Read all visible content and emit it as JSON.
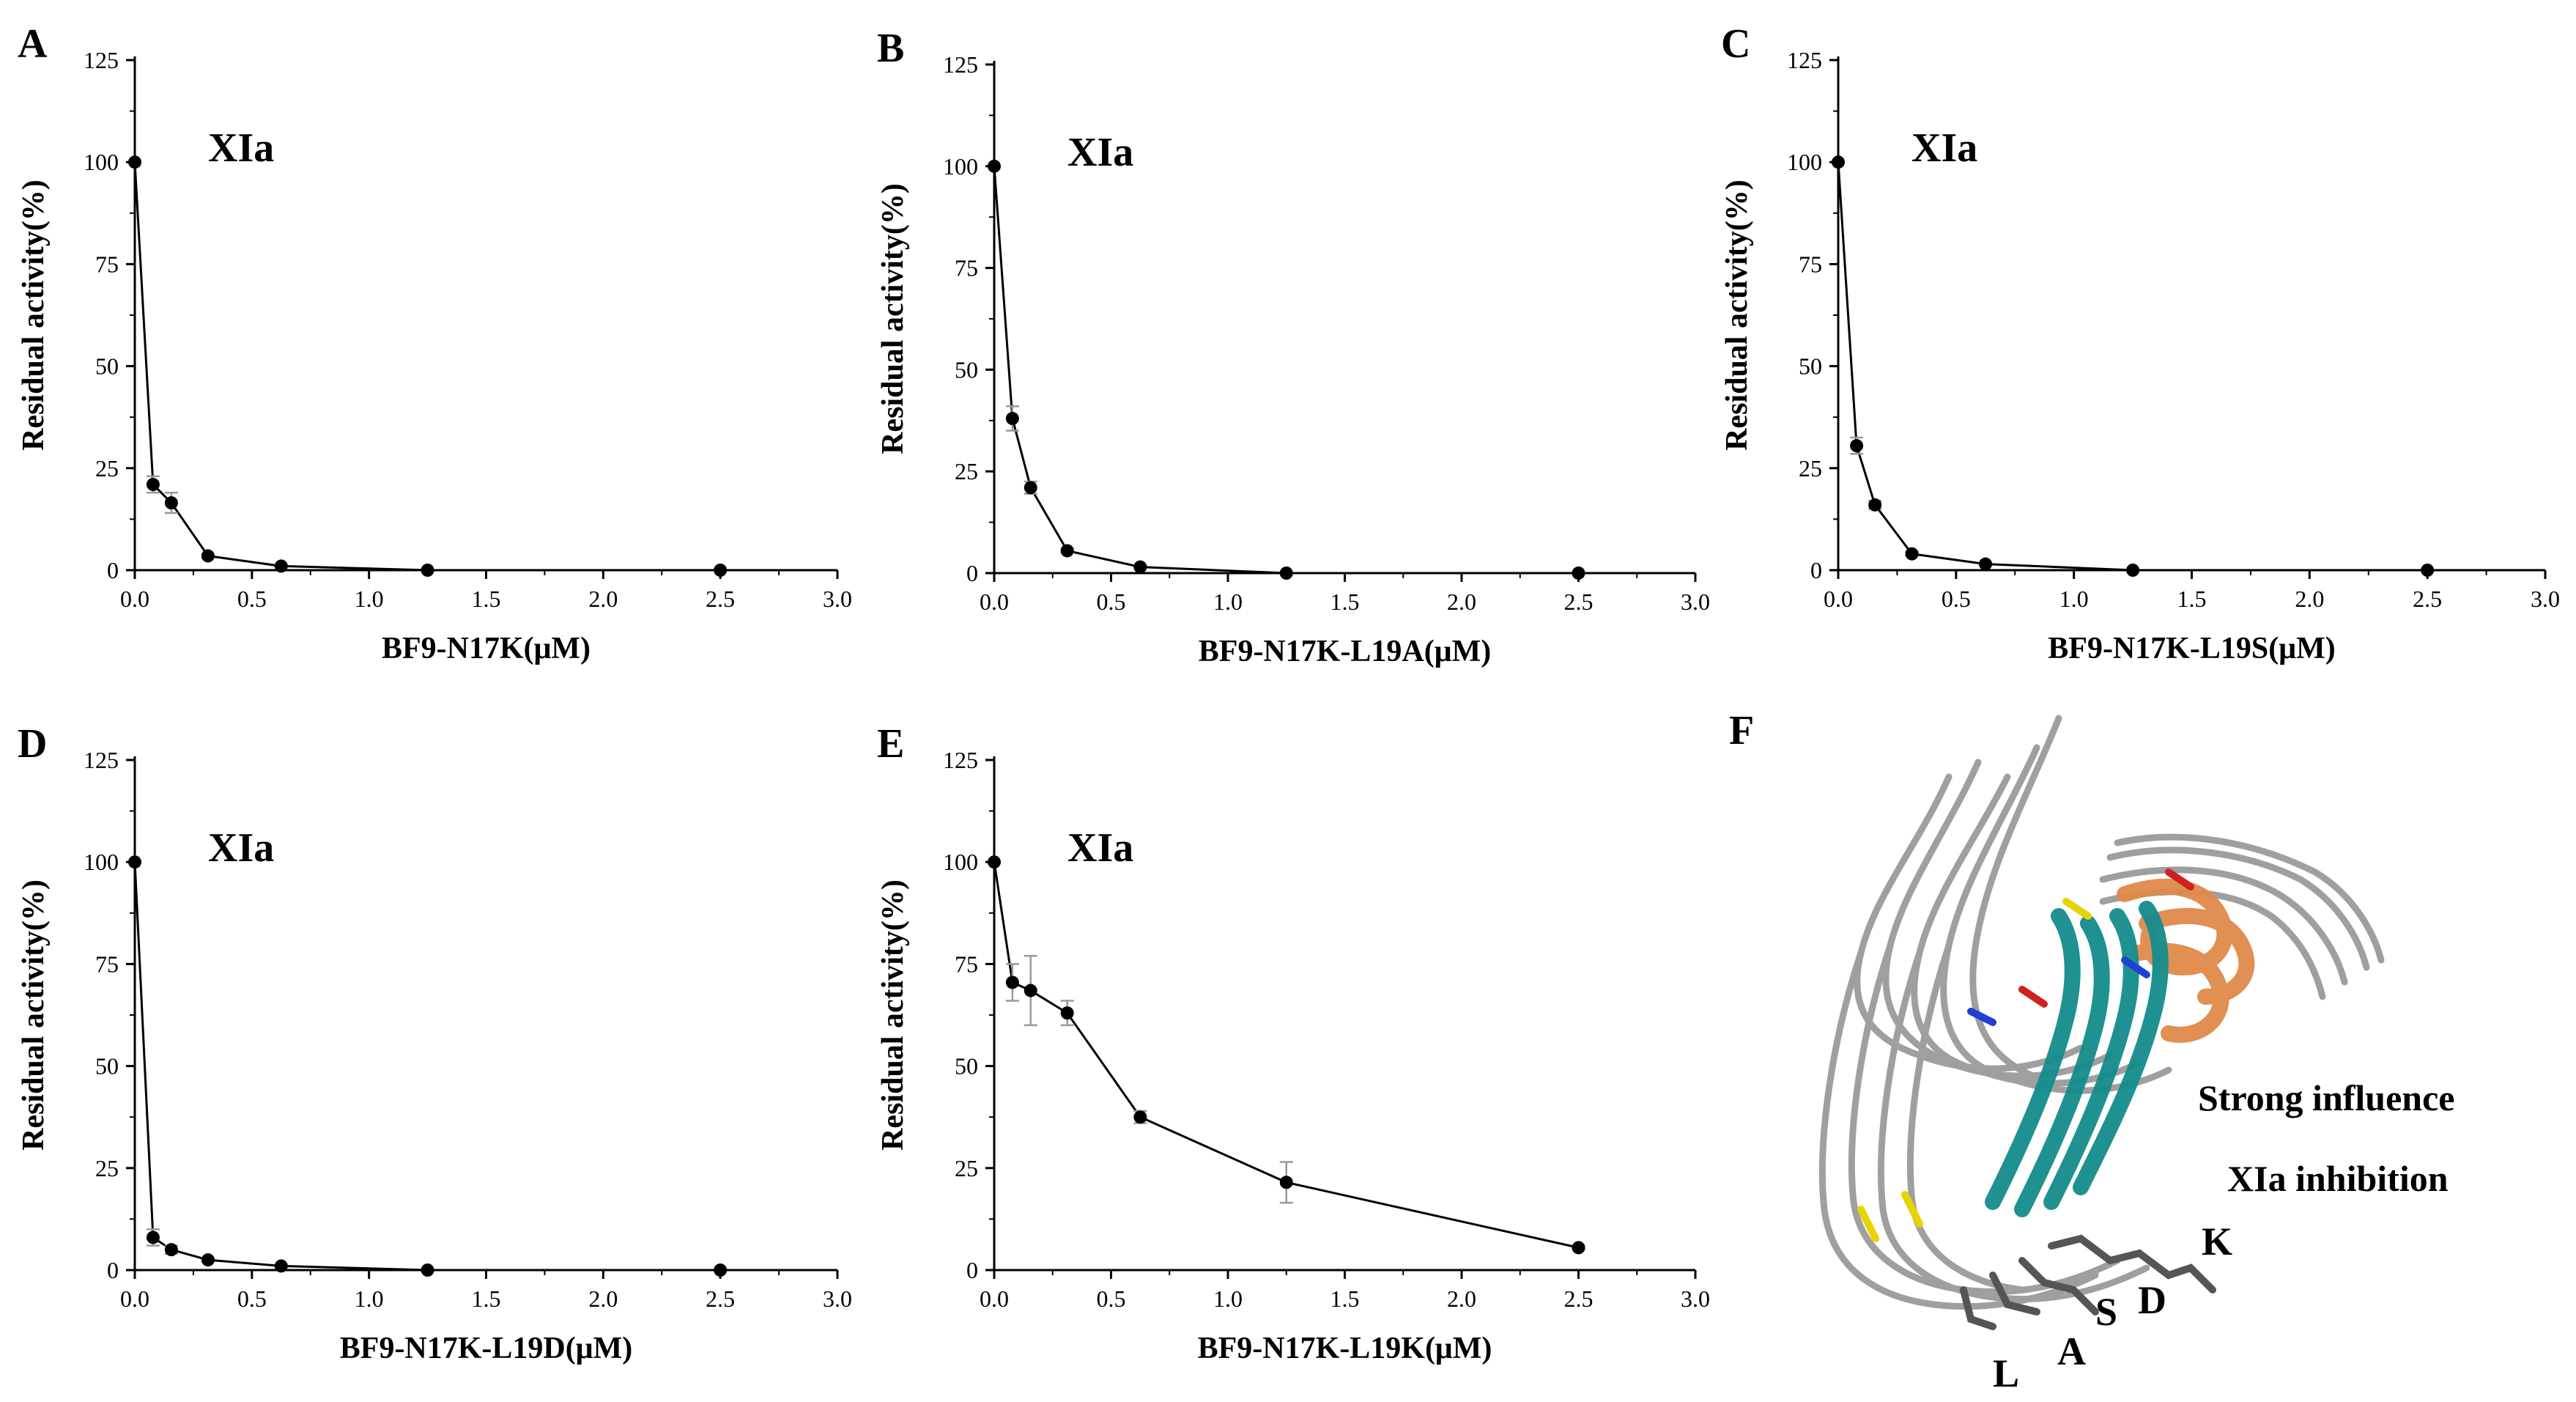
{
  "chart_data": [
    {
      "panel": "A",
      "type": "line",
      "title": "XIa",
      "xlabel": "BF9-N17K(μM)",
      "ylabel": "Residual activity(%)",
      "xlim": [
        0,
        3.0
      ],
      "ylim": [
        0,
        125
      ],
      "xticks": [
        "0.0",
        "0.5",
        "1.0",
        "1.5",
        "2.0",
        "2.5",
        "3.0"
      ],
      "yticks": [
        "0",
        "25",
        "50",
        "75",
        "100",
        "125"
      ],
      "x": [
        0,
        0.078,
        0.156,
        0.3125,
        0.625,
        1.25,
        2.5
      ],
      "y": [
        100,
        21,
        16.5,
        3.5,
        1,
        0,
        0
      ],
      "err": [
        0,
        2,
        2.5,
        0.5,
        0.3,
        0,
        0
      ]
    },
    {
      "panel": "B",
      "type": "line",
      "title": "XIa",
      "xlabel": "BF9-N17K-L19A(μM)",
      "ylabel": "Residual activity(%)",
      "xlim": [
        0,
        3.0
      ],
      "ylim": [
        0,
        125
      ],
      "xticks": [
        "0.0",
        "0.5",
        "1.0",
        "1.5",
        "2.0",
        "2.5",
        "3.0"
      ],
      "yticks": [
        "0",
        "25",
        "50",
        "75",
        "100",
        "125"
      ],
      "x": [
        0,
        0.078,
        0.156,
        0.3125,
        0.625,
        1.25,
        2.5
      ],
      "y": [
        100,
        38,
        21,
        5.5,
        1.5,
        0,
        0
      ],
      "err": [
        0,
        3,
        1.5,
        0.5,
        0.3,
        0,
        0
      ]
    },
    {
      "panel": "C",
      "type": "line",
      "title": "XIa",
      "xlabel": "BF9-N17K-L19S(μM)",
      "ylabel": "Residual activity(%)",
      "xlim": [
        0,
        3.0
      ],
      "ylim": [
        0,
        125
      ],
      "xticks": [
        "0.0",
        "0.5",
        "1.0",
        "1.5",
        "2.0",
        "2.5",
        "3.0"
      ],
      "yticks": [
        "0",
        "25",
        "50",
        "75",
        "100",
        "125"
      ],
      "x": [
        0,
        0.078,
        0.156,
        0.3125,
        0.625,
        1.25,
        2.5
      ],
      "y": [
        100,
        30.5,
        16,
        4,
        1.5,
        0,
        0
      ],
      "err": [
        0,
        2,
        1,
        0.5,
        0.3,
        0,
        0
      ]
    },
    {
      "panel": "D",
      "type": "line",
      "title": "XIa",
      "xlabel": "BF9-N17K-L19D(μM)",
      "ylabel": "Residual activity(%)",
      "xlim": [
        0,
        3.0
      ],
      "ylim": [
        0,
        125
      ],
      "xticks": [
        "0.0",
        "0.5",
        "1.0",
        "1.5",
        "2.0",
        "2.5",
        "3.0"
      ],
      "yticks": [
        "0",
        "25",
        "50",
        "75",
        "100",
        "125"
      ],
      "x": [
        0,
        0.078,
        0.156,
        0.3125,
        0.625,
        1.25,
        2.5
      ],
      "y": [
        100,
        8,
        5,
        2.5,
        1,
        0,
        0
      ],
      "err": [
        0,
        2,
        1,
        0.5,
        0.3,
        0,
        0
      ]
    },
    {
      "panel": "E",
      "type": "line",
      "title": "XIa",
      "xlabel": "BF9-N17K-L19K(μM)",
      "ylabel": "Residual activity(%)",
      "xlim": [
        0,
        3.0
      ],
      "ylim": [
        0,
        125
      ],
      "xticks": [
        "0.0",
        "0.5",
        "1.0",
        "1.5",
        "2.0",
        "2.5",
        "3.0"
      ],
      "yticks": [
        "0",
        "25",
        "50",
        "75",
        "100",
        "125"
      ],
      "x": [
        0,
        0.078,
        0.156,
        0.3125,
        0.625,
        1.25,
        2.5
      ],
      "y": [
        100,
        70.5,
        68.5,
        63,
        37.5,
        21.5,
        5.5
      ],
      "err": [
        0,
        4.5,
        8.5,
        3,
        1.5,
        5,
        0.5
      ]
    }
  ],
  "structure": {
    "panel": "F",
    "label_line1": "Strong influence",
    "label_line2": "XIa inhibition",
    "residues": [
      "K",
      "D",
      "S",
      "A",
      "L"
    ],
    "colors": {
      "loop": "#9a9a9a",
      "helix": "#e08a4a",
      "strand": "#148c8c"
    }
  }
}
